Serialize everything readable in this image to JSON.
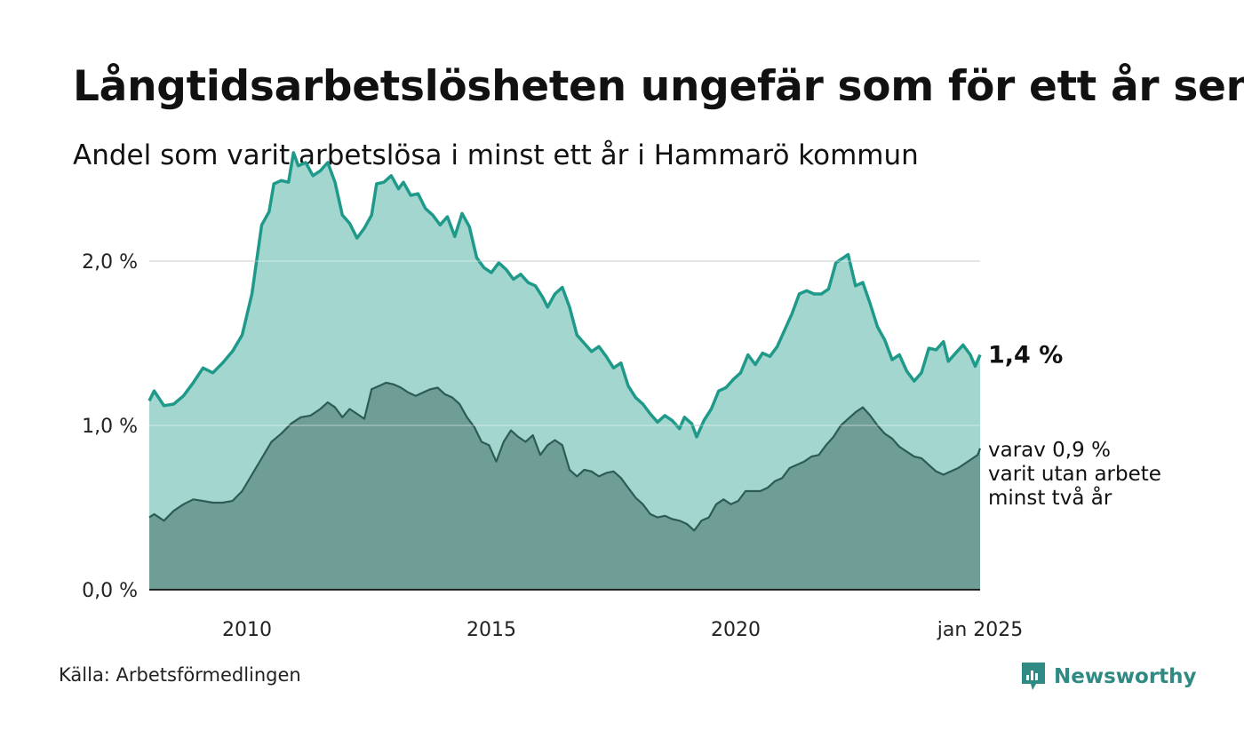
{
  "header": {
    "title": "Långtidsarbetslösheten ungefär som för ett år sen",
    "subtitle": "Andel som varit arbetslösa i minst ett år i Hammarö kommun"
  },
  "footer": {
    "source": "Källa: Arbetsförmedlingen",
    "brand": "Newsworthy"
  },
  "colors": {
    "total_line": "#1f9a8a",
    "total_fill": "#a3d6cf",
    "long_line": "#2d5c55",
    "long_fill": "#6f9e96",
    "grid": "#dddddd",
    "axis": "#222222"
  },
  "chart_data": {
    "type": "area",
    "title": "Långtidsarbetslösheten ungefär som för ett år sen",
    "subtitle": "Andel som varit arbetslösa i minst ett år i Hammarö kommun",
    "xlabel": "",
    "ylabel": "",
    "x_range": [
      2008.0,
      2025.0
    ],
    "ylim": [
      0,
      2.6
    ],
    "y_ticks": [
      0,
      1.0,
      2.0
    ],
    "y_tick_labels": [
      "0,0 %",
      "1,0 %",
      "2,0 %"
    ],
    "x_ticks": [
      2010,
      2015,
      2020,
      2025
    ],
    "x_tick_labels": [
      "2010",
      "2015",
      "2020",
      "jan 2025"
    ],
    "grid": true,
    "series": [
      {
        "name": "Minst ett år",
        "label": "1,4 %",
        "points": [
          [
            2008.0,
            1.15
          ],
          [
            2008.1,
            1.21
          ],
          [
            2008.3,
            1.12
          ],
          [
            2008.5,
            1.13
          ],
          [
            2008.7,
            1.18
          ],
          [
            2008.9,
            1.26
          ],
          [
            2009.1,
            1.35
          ],
          [
            2009.3,
            1.32
          ],
          [
            2009.5,
            1.38
          ],
          [
            2009.7,
            1.45
          ],
          [
            2009.9,
            1.55
          ],
          [
            2010.1,
            1.8
          ],
          [
            2010.3,
            2.22
          ],
          [
            2010.45,
            2.3
          ],
          [
            2010.55,
            2.47
          ],
          [
            2010.7,
            2.49
          ],
          [
            2010.85,
            2.48
          ],
          [
            2010.95,
            2.66
          ],
          [
            2011.05,
            2.58
          ],
          [
            2011.2,
            2.6
          ],
          [
            2011.35,
            2.52
          ],
          [
            2011.5,
            2.55
          ],
          [
            2011.65,
            2.6
          ],
          [
            2011.8,
            2.48
          ],
          [
            2011.95,
            2.28
          ],
          [
            2012.1,
            2.23
          ],
          [
            2012.25,
            2.14
          ],
          [
            2012.4,
            2.2
          ],
          [
            2012.55,
            2.28
          ],
          [
            2012.65,
            2.47
          ],
          [
            2012.8,
            2.48
          ],
          [
            2012.95,
            2.52
          ],
          [
            2013.1,
            2.44
          ],
          [
            2013.2,
            2.48
          ],
          [
            2013.35,
            2.4
          ],
          [
            2013.5,
            2.41
          ],
          [
            2013.65,
            2.32
          ],
          [
            2013.8,
            2.28
          ],
          [
            2013.95,
            2.22
          ],
          [
            2014.1,
            2.27
          ],
          [
            2014.25,
            2.15
          ],
          [
            2014.4,
            2.29
          ],
          [
            2014.55,
            2.21
          ],
          [
            2014.7,
            2.02
          ],
          [
            2014.85,
            1.96
          ],
          [
            2015.0,
            1.93
          ],
          [
            2015.15,
            1.99
          ],
          [
            2015.3,
            1.95
          ],
          [
            2015.45,
            1.89
          ],
          [
            2015.6,
            1.92
          ],
          [
            2015.75,
            1.87
          ],
          [
            2015.9,
            1.85
          ],
          [
            2016.05,
            1.78
          ],
          [
            2016.15,
            1.72
          ],
          [
            2016.3,
            1.8
          ],
          [
            2016.45,
            1.84
          ],
          [
            2016.6,
            1.72
          ],
          [
            2016.75,
            1.55
          ],
          [
            2016.9,
            1.5
          ],
          [
            2017.05,
            1.45
          ],
          [
            2017.2,
            1.48
          ],
          [
            2017.35,
            1.42
          ],
          [
            2017.5,
            1.35
          ],
          [
            2017.65,
            1.38
          ],
          [
            2017.8,
            1.24
          ],
          [
            2017.95,
            1.17
          ],
          [
            2018.1,
            1.13
          ],
          [
            2018.25,
            1.07
          ],
          [
            2018.4,
            1.02
          ],
          [
            2018.55,
            1.06
          ],
          [
            2018.7,
            1.03
          ],
          [
            2018.85,
            0.98
          ],
          [
            2018.95,
            1.05
          ],
          [
            2019.1,
            1.01
          ],
          [
            2019.2,
            0.93
          ],
          [
            2019.35,
            1.03
          ],
          [
            2019.5,
            1.1
          ],
          [
            2019.65,
            1.21
          ],
          [
            2019.8,
            1.23
          ],
          [
            2019.95,
            1.28
          ],
          [
            2020.1,
            1.32
          ],
          [
            2020.25,
            1.43
          ],
          [
            2020.4,
            1.37
          ],
          [
            2020.55,
            1.44
          ],
          [
            2020.7,
            1.42
          ],
          [
            2020.85,
            1.48
          ],
          [
            2021.0,
            1.58
          ],
          [
            2021.15,
            1.68
          ],
          [
            2021.3,
            1.8
          ],
          [
            2021.45,
            1.82
          ],
          [
            2021.6,
            1.8
          ],
          [
            2021.75,
            1.8
          ],
          [
            2021.9,
            1.83
          ],
          [
            2022.05,
            1.99
          ],
          [
            2022.2,
            2.02
          ],
          [
            2022.3,
            2.04
          ],
          [
            2022.45,
            1.85
          ],
          [
            2022.6,
            1.87
          ],
          [
            2022.75,
            1.74
          ],
          [
            2022.9,
            1.6
          ],
          [
            2023.05,
            1.52
          ],
          [
            2023.2,
            1.4
          ],
          [
            2023.35,
            1.43
          ],
          [
            2023.5,
            1.33
          ],
          [
            2023.65,
            1.27
          ],
          [
            2023.8,
            1.32
          ],
          [
            2023.95,
            1.47
          ],
          [
            2024.1,
            1.46
          ],
          [
            2024.25,
            1.51
          ],
          [
            2024.35,
            1.39
          ],
          [
            2024.5,
            1.44
          ],
          [
            2024.65,
            1.49
          ],
          [
            2024.8,
            1.43
          ],
          [
            2024.9,
            1.36
          ],
          [
            2025.0,
            1.43
          ]
        ]
      },
      {
        "name": "varav minst två år",
        "label_lines": [
          "varav 0,9 %",
          "varit utan arbete",
          "minst två år"
        ],
        "points": [
          [
            2008.0,
            0.44
          ],
          [
            2008.1,
            0.46
          ],
          [
            2008.3,
            0.42
          ],
          [
            2008.5,
            0.48
          ],
          [
            2008.7,
            0.52
          ],
          [
            2008.9,
            0.55
          ],
          [
            2009.1,
            0.54
          ],
          [
            2009.3,
            0.53
          ],
          [
            2009.5,
            0.53
          ],
          [
            2009.7,
            0.54
          ],
          [
            2009.9,
            0.6
          ],
          [
            2010.1,
            0.7
          ],
          [
            2010.3,
            0.8
          ],
          [
            2010.5,
            0.9
          ],
          [
            2010.7,
            0.95
          ],
          [
            2010.9,
            1.01
          ],
          [
            2011.1,
            1.05
          ],
          [
            2011.3,
            1.06
          ],
          [
            2011.5,
            1.1
          ],
          [
            2011.65,
            1.14
          ],
          [
            2011.8,
            1.11
          ],
          [
            2011.95,
            1.05
          ],
          [
            2012.1,
            1.1
          ],
          [
            2012.25,
            1.07
          ],
          [
            2012.4,
            1.04
          ],
          [
            2012.55,
            1.22
          ],
          [
            2012.7,
            1.24
          ],
          [
            2012.85,
            1.26
          ],
          [
            2013.0,
            1.25
          ],
          [
            2013.15,
            1.23
          ],
          [
            2013.3,
            1.2
          ],
          [
            2013.45,
            1.18
          ],
          [
            2013.6,
            1.2
          ],
          [
            2013.75,
            1.22
          ],
          [
            2013.9,
            1.23
          ],
          [
            2014.05,
            1.19
          ],
          [
            2014.2,
            1.17
          ],
          [
            2014.35,
            1.13
          ],
          [
            2014.5,
            1.05
          ],
          [
            2014.65,
            0.99
          ],
          [
            2014.8,
            0.9
          ],
          [
            2014.95,
            0.88
          ],
          [
            2015.1,
            0.78
          ],
          [
            2015.25,
            0.9
          ],
          [
            2015.4,
            0.97
          ],
          [
            2015.55,
            0.93
          ],
          [
            2015.7,
            0.9
          ],
          [
            2015.85,
            0.94
          ],
          [
            2016.0,
            0.82
          ],
          [
            2016.15,
            0.88
          ],
          [
            2016.3,
            0.91
          ],
          [
            2016.45,
            0.88
          ],
          [
            2016.6,
            0.73
          ],
          [
            2016.75,
            0.69
          ],
          [
            2016.9,
            0.73
          ],
          [
            2017.05,
            0.72
          ],
          [
            2017.2,
            0.69
          ],
          [
            2017.35,
            0.71
          ],
          [
            2017.5,
            0.72
          ],
          [
            2017.65,
            0.68
          ],
          [
            2017.8,
            0.62
          ],
          [
            2017.95,
            0.56
          ],
          [
            2018.1,
            0.52
          ],
          [
            2018.25,
            0.46
          ],
          [
            2018.4,
            0.44
          ],
          [
            2018.55,
            0.45
          ],
          [
            2018.7,
            0.43
          ],
          [
            2018.85,
            0.42
          ],
          [
            2019.0,
            0.4
          ],
          [
            2019.15,
            0.36
          ],
          [
            2019.3,
            0.42
          ],
          [
            2019.45,
            0.44
          ],
          [
            2019.6,
            0.52
          ],
          [
            2019.75,
            0.55
          ],
          [
            2019.9,
            0.52
          ],
          [
            2020.05,
            0.54
          ],
          [
            2020.2,
            0.6
          ],
          [
            2020.35,
            0.6
          ],
          [
            2020.5,
            0.6
          ],
          [
            2020.65,
            0.62
          ],
          [
            2020.8,
            0.66
          ],
          [
            2020.95,
            0.68
          ],
          [
            2021.1,
            0.74
          ],
          [
            2021.25,
            0.76
          ],
          [
            2021.4,
            0.78
          ],
          [
            2021.55,
            0.81
          ],
          [
            2021.7,
            0.82
          ],
          [
            2021.85,
            0.88
          ],
          [
            2022.0,
            0.93
          ],
          [
            2022.15,
            1.0
          ],
          [
            2022.3,
            1.04
          ],
          [
            2022.45,
            1.08
          ],
          [
            2022.6,
            1.11
          ],
          [
            2022.75,
            1.06
          ],
          [
            2022.9,
            1.0
          ],
          [
            2023.05,
            0.95
          ],
          [
            2023.2,
            0.92
          ],
          [
            2023.35,
            0.87
          ],
          [
            2023.5,
            0.84
          ],
          [
            2023.65,
            0.81
          ],
          [
            2023.8,
            0.8
          ],
          [
            2023.95,
            0.76
          ],
          [
            2024.1,
            0.72
          ],
          [
            2024.25,
            0.7
          ],
          [
            2024.4,
            0.72
          ],
          [
            2024.55,
            0.74
          ],
          [
            2024.7,
            0.77
          ],
          [
            2024.85,
            0.8
          ],
          [
            2024.95,
            0.82
          ],
          [
            2025.0,
            0.86
          ]
        ]
      }
    ]
  }
}
